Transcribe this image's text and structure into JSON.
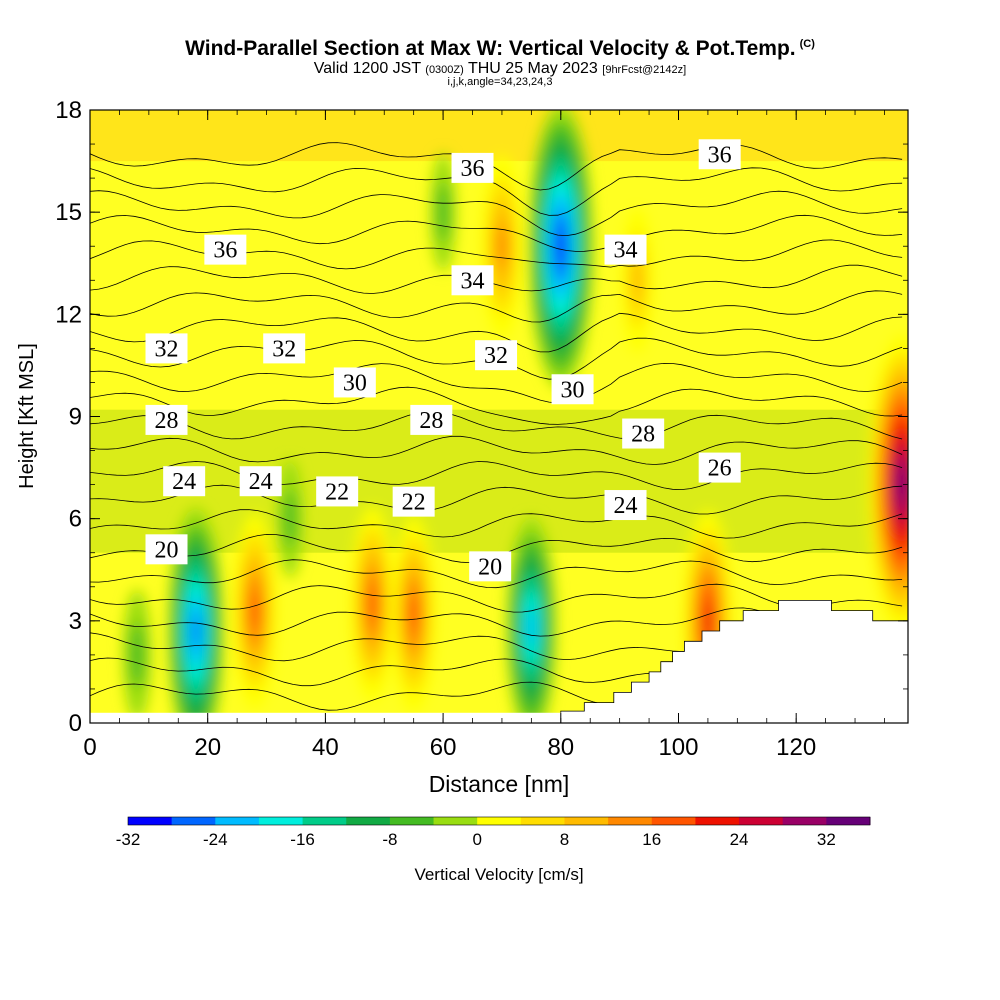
{
  "header": {
    "title": "Wind-Parallel Section at Max W: Vertical Velocity & Pot.Temp.",
    "copyright": "(C)",
    "valid_prefix": "Valid 1200 JST",
    "valid_utc": "(0300Z)",
    "valid_date": "THU 25 May 2023",
    "forecast": "[9hrFcst@2142z]",
    "indices": "i,j,k,angle=34,23,24,3"
  },
  "chart_data": {
    "type": "heatmap",
    "xlabel": "Distance [nm]",
    "ylabel": "Height [Kft MSL]",
    "xlim": [
      0,
      139
    ],
    "ylim": [
      0,
      18
    ],
    "x_ticks": [
      0,
      20,
      40,
      60,
      80,
      100,
      120
    ],
    "y_ticks": [
      0,
      3,
      6,
      9,
      12,
      15,
      18
    ],
    "colorbar": {
      "label": "Vertical Velocity [cm/s]",
      "min": -32,
      "max": 36,
      "step": 4,
      "ticks": [
        -32,
        -24,
        -16,
        -8,
        0,
        8,
        16,
        24,
        32
      ],
      "colors": [
        "#0000ff",
        "#0066ff",
        "#00bbff",
        "#00eedd",
        "#00cc88",
        "#11aa44",
        "#44bb22",
        "#99dd11",
        "#ffff00",
        "#ffdd00",
        "#ffbb00",
        "#ff8800",
        "#ff5500",
        "#ee1100",
        "#cc0033",
        "#990066",
        "#660077"
      ]
    },
    "w_cells": [
      {
        "x": 18,
        "y": 2.7,
        "w": -26
      },
      {
        "x": 8,
        "y": 2.0,
        "w": -8
      },
      {
        "x": 28,
        "y": 3.3,
        "w": 18
      },
      {
        "x": 34,
        "y": 6.0,
        "w": -6
      },
      {
        "x": 48,
        "y": 3.5,
        "w": 18
      },
      {
        "x": 55,
        "y": 3.2,
        "w": 18
      },
      {
        "x": 75,
        "y": 2.8,
        "w": -22
      },
      {
        "x": 105,
        "y": 3.0,
        "w": 22
      },
      {
        "x": 80,
        "y": 14.0,
        "w": -32
      },
      {
        "x": 70,
        "y": 14.0,
        "w": 16
      },
      {
        "x": 60,
        "y": 15.0,
        "w": -6
      },
      {
        "x": 93,
        "y": 13.0,
        "w": 10
      },
      {
        "x": 138,
        "y": 7.0,
        "w": 34
      }
    ],
    "theta_labels": [
      {
        "value": "36",
        "x": 65,
        "y": 16.3
      },
      {
        "value": "36",
        "x": 23,
        "y": 13.9
      },
      {
        "value": "36",
        "x": 107,
        "y": 16.7
      },
      {
        "value": "34",
        "x": 65,
        "y": 13.0
      },
      {
        "value": "34",
        "x": 91,
        "y": 13.9
      },
      {
        "value": "32",
        "x": 13,
        "y": 11.0
      },
      {
        "value": "32",
        "x": 33,
        "y": 11.0
      },
      {
        "value": "32",
        "x": 69,
        "y": 10.8
      },
      {
        "value": "30",
        "x": 45,
        "y": 10.0
      },
      {
        "value": "30",
        "x": 82,
        "y": 9.8
      },
      {
        "value": "28",
        "x": 13,
        "y": 8.9
      },
      {
        "value": "28",
        "x": 58,
        "y": 8.9
      },
      {
        "value": "28",
        "x": 94,
        "y": 8.5
      },
      {
        "value": "26",
        "x": 107,
        "y": 7.5
      },
      {
        "value": "24",
        "x": 16,
        "y": 7.1
      },
      {
        "value": "24",
        "x": 29,
        "y": 7.1
      },
      {
        "value": "24",
        "x": 91,
        "y": 6.4
      },
      {
        "value": "22",
        "x": 42,
        "y": 6.8
      },
      {
        "value": "22",
        "x": 55,
        "y": 6.5
      },
      {
        "value": "20",
        "x": 13,
        "y": 5.1
      },
      {
        "value": "20",
        "x": 68,
        "y": 4.6
      }
    ]
  }
}
